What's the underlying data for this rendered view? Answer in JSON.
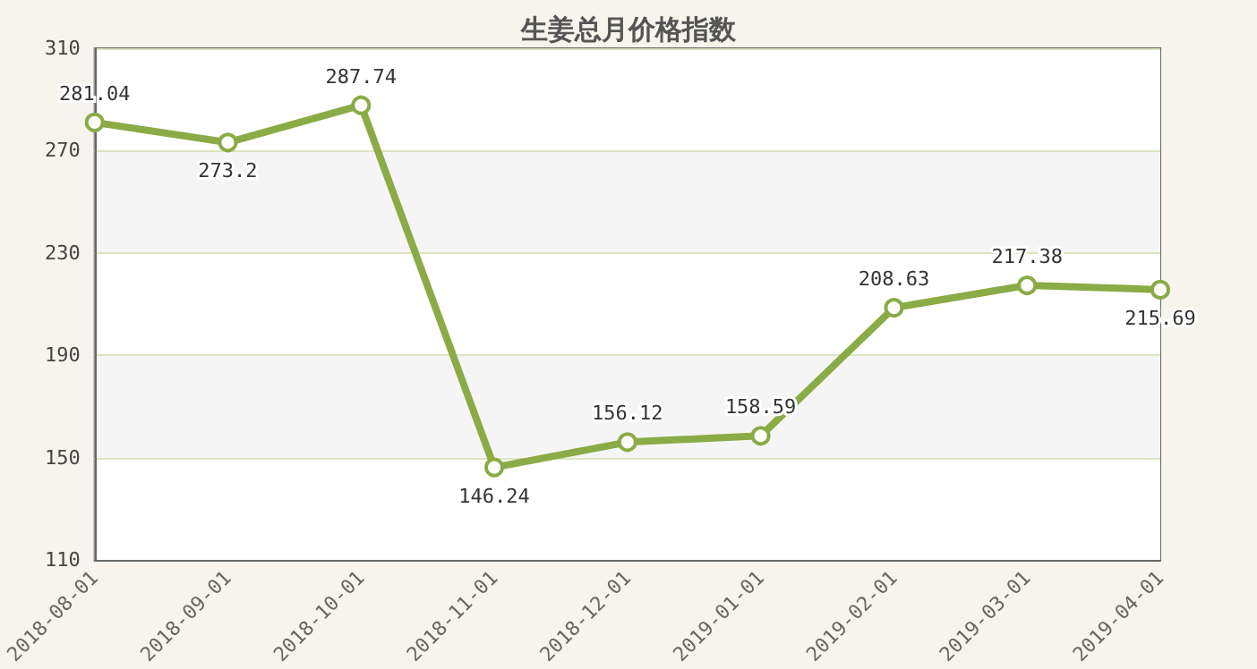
{
  "chart_data": {
    "type": "line",
    "title": "生姜总月价格指数",
    "categories": [
      "2018-08-01",
      "2018-09-01",
      "2018-10-01",
      "2018-11-01",
      "2018-12-01",
      "2019-01-01",
      "2019-02-01",
      "2019-03-01",
      "2019-04-01"
    ],
    "series": [
      {
        "color": "#8aab45",
        "values": [
          281.04,
          273.2,
          287.74,
          146.24,
          156.12,
          158.59,
          208.63,
          217.38,
          215.69
        ]
      }
    ],
    "ylim": [
      110,
      310
    ],
    "yticks": [
      110,
      150,
      190,
      230,
      270,
      310
    ],
    "grid": "y",
    "data_labels": true,
    "marker": "circle",
    "line_style": "solid"
  }
}
